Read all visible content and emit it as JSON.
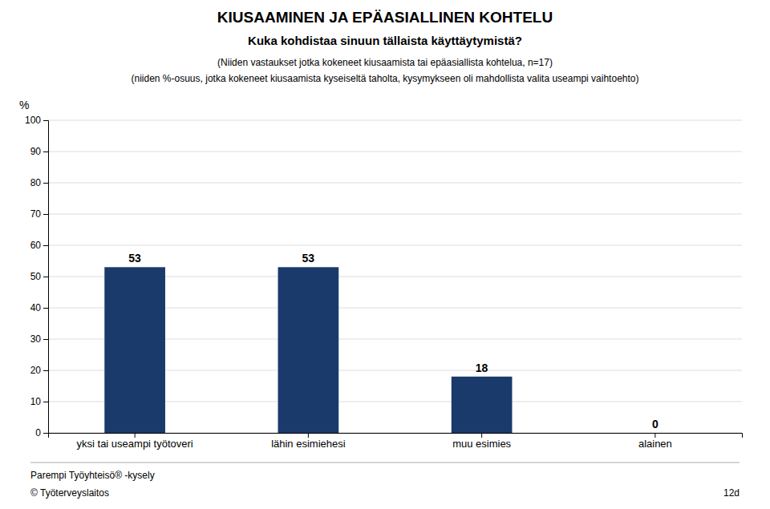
{
  "chart_data": {
    "type": "bar",
    "title": "KIUSAAMINEN JA EPÄASIALLINEN KOHTELU",
    "subtitle": [
      "Kuka kohdistaa sinuun tällaista käyttäytymistä?",
      "(Niiden vastaukset jotka kokeneet kiusaamista tai epäasiallista kohtelua, n=17)",
      "(niiden %-osuus, jotka kokeneet kiusaamista kyseiseltä taholta, kysymykseen oli mahdollista valita useampi vaihtoehto)"
    ],
    "y_label": "%",
    "categories": [
      "yksi tai useampi työtoveri",
      "lähin esimiehesi",
      "muu esimies",
      "alainen"
    ],
    "values": [
      53,
      53,
      18,
      0
    ],
    "color": "#1a3a6b",
    "ylim": [
      0,
      100
    ],
    "yticks": [
      0,
      10,
      20,
      30,
      40,
      50,
      60,
      70,
      80,
      90,
      100
    ],
    "grid": true,
    "data_labels": true,
    "annotations": [
      "Parempi Työyhteisö® -kysely",
      "© Työterveyslaitos",
      "12d"
    ]
  }
}
